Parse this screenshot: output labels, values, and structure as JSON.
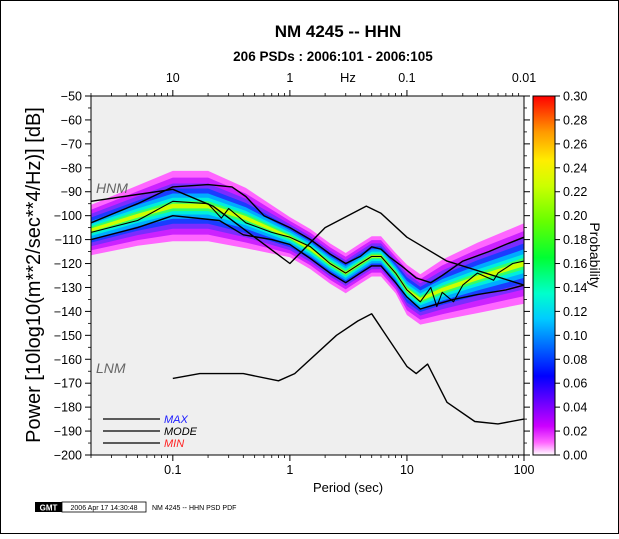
{
  "chart_data": {
    "type": "heatmap",
    "title": "NM 4245 -- HHN",
    "subtitle": "206 PSDs : 2006:101 - 2006:105",
    "xlabel": "Period (sec)",
    "xlabel_top": "Hz",
    "ylabel": "Power [10log10(m**2/sec**4/Hz)] [dB]",
    "colorbar_label": "Probability",
    "x_scale": "log",
    "xlim": [
      0.02,
      100
    ],
    "ylim": [
      -200,
      -50
    ],
    "x_ticks": [
      {
        "value": 0.1,
        "label": "0.1"
      },
      {
        "value": 1,
        "label": "1"
      },
      {
        "value": 10,
        "label": "10"
      },
      {
        "value": 100,
        "label": "100"
      }
    ],
    "x_top_ticks": [
      {
        "value": 0.1,
        "label": "10"
      },
      {
        "value": 1,
        "label": "1"
      },
      {
        "value": 10,
        "label": "0.1"
      },
      {
        "value": 100,
        "label": "0.01"
      }
    ],
    "y_ticks": [
      -50,
      -60,
      -70,
      -80,
      -90,
      -100,
      -110,
      -120,
      -130,
      -140,
      -150,
      -160,
      -170,
      -180,
      -190,
      -200
    ],
    "colorbar_ticks": [
      "0.30",
      "0.28",
      "0.26",
      "0.24",
      "0.22",
      "0.20",
      "0.18",
      "0.16",
      "0.14",
      "0.12",
      "0.10",
      "0.08",
      "0.06",
      "0.04",
      "0.02",
      "0.00"
    ],
    "colorbar_range": [
      0,
      0.3
    ],
    "legend": [
      {
        "label": "MAX",
        "color": "#1a1aff"
      },
      {
        "label": "MODE",
        "color": "#000000"
      },
      {
        "label": "MIN",
        "color": "#ff2020"
      }
    ],
    "annotations": [
      "HNM",
      "LNM"
    ],
    "series": [
      {
        "name": "HNM",
        "points": [
          [
            0.02,
            -94
          ],
          [
            0.1,
            -89
          ],
          [
            0.22,
            -96
          ],
          [
            1,
            -120
          ],
          [
            2,
            -105
          ],
          [
            4.5,
            -96
          ],
          [
            6,
            -99
          ],
          [
            10,
            -109
          ],
          [
            22,
            -119
          ],
          [
            100,
            -129
          ]
        ]
      },
      {
        "name": "LNM",
        "points": [
          [
            0.1,
            -168
          ],
          [
            0.17,
            -166
          ],
          [
            0.4,
            -166
          ],
          [
            0.8,
            -169
          ],
          [
            1.1,
            -166
          ],
          [
            2.5,
            -150
          ],
          [
            3.8,
            -144
          ],
          [
            5,
            -141
          ],
          [
            10,
            -163
          ],
          [
            12,
            -166
          ],
          [
            15,
            -162
          ],
          [
            22,
            -178
          ],
          [
            38,
            -186
          ],
          [
            60,
            -187
          ],
          [
            100,
            -185
          ]
        ]
      },
      {
        "name": "MAX",
        "points": [
          [
            0.02,
            -103
          ],
          [
            0.05,
            -95
          ],
          [
            0.1,
            -88
          ],
          [
            0.2,
            -87
          ],
          [
            0.32,
            -88
          ],
          [
            0.42,
            -92
          ],
          [
            0.6,
            -100
          ],
          [
            1,
            -105
          ],
          [
            1.5,
            -110
          ],
          [
            2.2,
            -116
          ],
          [
            3,
            -120
          ],
          [
            4,
            -117
          ],
          [
            5,
            -113
          ],
          [
            6,
            -114
          ],
          [
            7,
            -117
          ],
          [
            9,
            -121
          ],
          [
            12,
            -126
          ],
          [
            16,
            -128
          ],
          [
            20,
            -125
          ],
          [
            30,
            -119
          ],
          [
            50,
            -115
          ],
          [
            70,
            -112
          ],
          [
            100,
            -109
          ]
        ]
      },
      {
        "name": "MODE",
        "points": [
          [
            0.02,
            -107
          ],
          [
            0.05,
            -102
          ],
          [
            0.1,
            -94
          ],
          [
            0.2,
            -95
          ],
          [
            0.26,
            -101
          ],
          [
            0.3,
            -97
          ],
          [
            0.42,
            -103
          ],
          [
            0.7,
            -107
          ],
          [
            1,
            -109
          ],
          [
            1.5,
            -113
          ],
          [
            2.2,
            -120
          ],
          [
            3,
            -124
          ],
          [
            4,
            -120
          ],
          [
            5,
            -117
          ],
          [
            6,
            -117
          ],
          [
            8,
            -124
          ],
          [
            10,
            -131
          ],
          [
            13,
            -136
          ],
          [
            16,
            -130
          ],
          [
            18,
            -138
          ],
          [
            20,
            -132
          ],
          [
            25,
            -136
          ],
          [
            30,
            -129
          ],
          [
            40,
            -124
          ],
          [
            55,
            -127
          ],
          [
            60,
            -124
          ],
          [
            80,
            -120
          ],
          [
            100,
            -119
          ]
        ]
      },
      {
        "name": "MIN",
        "points": [
          [
            0.02,
            -110
          ],
          [
            0.05,
            -105
          ],
          [
            0.1,
            -100
          ],
          [
            0.25,
            -102
          ],
          [
            0.4,
            -108
          ],
          [
            0.7,
            -110
          ],
          [
            1,
            -112
          ],
          [
            1.5,
            -118
          ],
          [
            2.2,
            -124
          ],
          [
            3,
            -128
          ],
          [
            4,
            -124
          ],
          [
            5,
            -121
          ],
          [
            6,
            -121
          ],
          [
            8,
            -128
          ],
          [
            10,
            -134
          ],
          [
            13,
            -139
          ],
          [
            18,
            -137
          ],
          [
            25,
            -135
          ],
          [
            40,
            -133
          ],
          [
            70,
            -131
          ],
          [
            100,
            -129
          ]
        ]
      }
    ],
    "density": [
      {
        "x": 0.02,
        "center": -106,
        "width": 5
      },
      {
        "x": 0.05,
        "center": -100,
        "width": 6
      },
      {
        "x": 0.1,
        "center": -96,
        "width": 7
      },
      {
        "x": 0.2,
        "center": -96,
        "width": 7
      },
      {
        "x": 0.42,
        "center": -101,
        "width": 6
      },
      {
        "x": 1,
        "center": -109,
        "width": 4
      },
      {
        "x": 1.5,
        "center": -114,
        "width": 4
      },
      {
        "x": 2.2,
        "center": -120,
        "width": 4
      },
      {
        "x": 3,
        "center": -124,
        "width": 4
      },
      {
        "x": 4,
        "center": -120,
        "width": 4
      },
      {
        "x": 5,
        "center": -117,
        "width": 4
      },
      {
        "x": 6,
        "center": -117,
        "width": 4
      },
      {
        "x": 8,
        "center": -124,
        "width": 4
      },
      {
        "x": 10,
        "center": -131,
        "width": 5
      },
      {
        "x": 13,
        "center": -135,
        "width": 5
      },
      {
        "x": 20,
        "center": -131,
        "width": 6
      },
      {
        "x": 40,
        "center": -126,
        "width": 7
      },
      {
        "x": 100,
        "center": -120,
        "width": 8
      }
    ],
    "footer": {
      "logo": "GMT",
      "timestamp": "2006 Apr 17 14:30:48",
      "caption": "NM 4245 -- HHN PSD PDF"
    }
  }
}
